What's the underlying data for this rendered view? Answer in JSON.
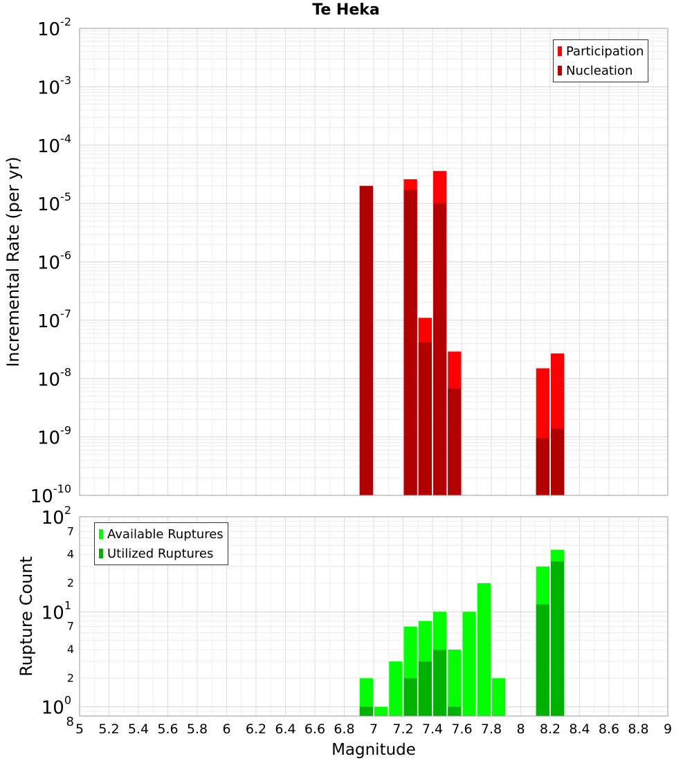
{
  "title": "Te Heka",
  "chart_data": [
    {
      "type": "bar",
      "scale": "log",
      "title": "Te Heka",
      "xlabel": "",
      "ylabel": "Incremental Rate (per yr)",
      "xlim": [
        5,
        9
      ],
      "ylim": [
        1e-10,
        0.01
      ],
      "bin_width": 0.1,
      "y_ticks": [
        "10^-10",
        "10^-9",
        "10^-8",
        "10^-7",
        "10^-6",
        "10^-5",
        "10^-4",
        "10^-3",
        "10^-2"
      ],
      "legend_position": "top-right",
      "series": [
        {
          "name": "Participation",
          "color": "#ff0000",
          "x": [
            6.95,
            7.25,
            7.35,
            7.45,
            7.55,
            8.15,
            8.25
          ],
          "values": [
            2e-05,
            2.6e-05,
            1.1e-07,
            3.6e-05,
            2.9e-08,
            1.5e-08,
            2.7e-08
          ]
        },
        {
          "name": "Nucleation",
          "color": "#b20000",
          "x": [
            6.95,
            7.25,
            7.35,
            7.45,
            7.55,
            8.15,
            8.25
          ],
          "values": [
            2e-05,
            1.7e-05,
            4.2e-08,
            1e-05,
            6.8e-09,
            9.6e-10,
            1.4e-09
          ]
        }
      ]
    },
    {
      "type": "bar",
      "scale": "log",
      "xlabel": "Magnitude",
      "ylabel": "Rupture Count",
      "xlim": [
        5,
        9
      ],
      "ylim": [
        0.8,
        100
      ],
      "bin_width": 0.1,
      "x_ticks": [
        "5",
        "5.2",
        "5.4",
        "5.6",
        "5.8",
        "6",
        "6.2",
        "6.4",
        "6.6",
        "6.8",
        "7",
        "7.2",
        "7.4",
        "7.6",
        "7.8",
        "8",
        "8.2",
        "8.4",
        "8.6",
        "8.8",
        "9"
      ],
      "legend_position": "top-left",
      "series": [
        {
          "name": "Available Ruptures",
          "color": "#00ff00",
          "x": [
            6.95,
            7.05,
            7.15,
            7.25,
            7.35,
            7.45,
            7.55,
            7.65,
            7.75,
            7.85,
            8.15,
            8.25
          ],
          "values": [
            2,
            1,
            3,
            7,
            8,
            10,
            4,
            10,
            20,
            2,
            30,
            45
          ]
        },
        {
          "name": "Utilized Ruptures",
          "color": "#00b200",
          "x": [
            6.95,
            7.25,
            7.35,
            7.45,
            7.55,
            8.15,
            8.25
          ],
          "values": [
            1,
            2,
            3,
            4,
            1,
            12,
            34
          ]
        }
      ]
    }
  ]
}
